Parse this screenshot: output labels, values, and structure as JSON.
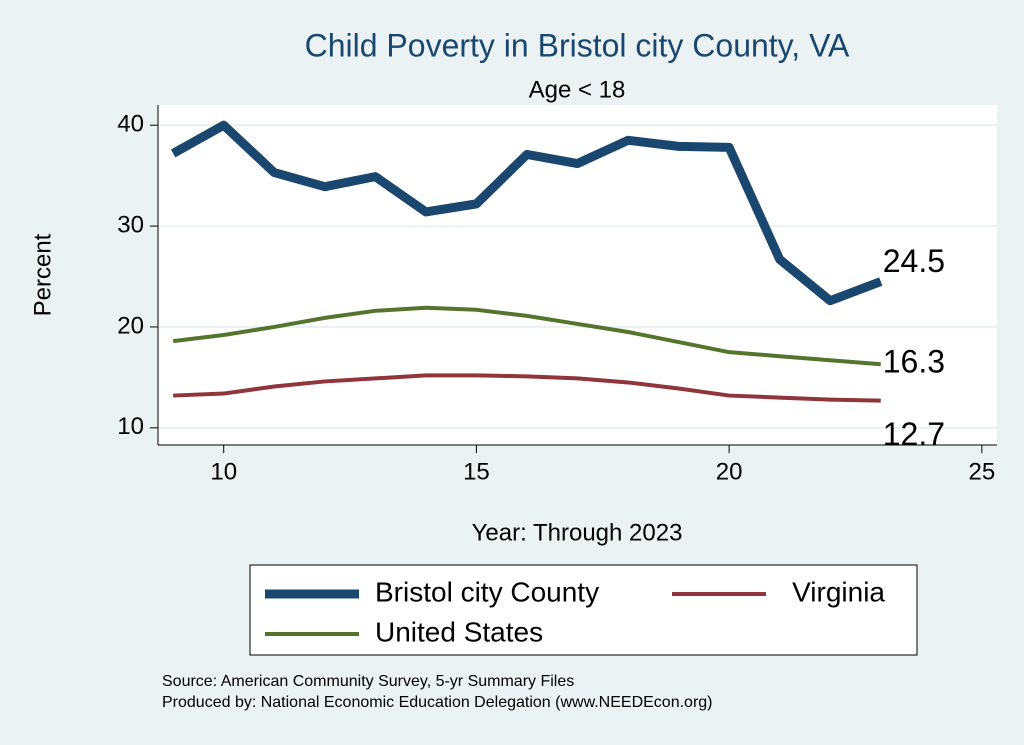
{
  "chart_data": {
    "type": "line",
    "title": "Child Poverty in Bristol city County, VA",
    "subtitle": "Age < 18",
    "x_label": "Year: Through 2023",
    "y_label": "Percent",
    "x": [
      9,
      10,
      11,
      12,
      13,
      14,
      15,
      16,
      17,
      18,
      19,
      20,
      21,
      22,
      23
    ],
    "series": [
      {
        "name": "Bristol city County",
        "color": "#1a476f",
        "values": [
          37.2,
          40,
          35.3,
          33.9,
          34.9,
          31.4,
          32.2,
          37.1,
          36.2,
          38.5,
          37.9,
          37.8,
          26.7,
          22.6,
          24.5
        ]
      },
      {
        "name": "Virginia",
        "color": "#90353b",
        "values": [
          13.2,
          13.4,
          14.1,
          14.6,
          14.9,
          15.2,
          15.2,
          15.1,
          14.9,
          14.5,
          13.9,
          13.2,
          13.0,
          12.8,
          12.7
        ]
      },
      {
        "name": "United States",
        "color": "#55752f",
        "values": [
          18.6,
          19.2,
          20.0,
          20.9,
          21.6,
          21.9,
          21.7,
          21.1,
          20.3,
          19.5,
          18.5,
          17.5,
          17.1,
          16.7,
          16.3
        ]
      }
    ],
    "xlim": [
      8.7,
      25.3
    ],
    "xticks": [
      10,
      15,
      20,
      25
    ],
    "ylim": [
      8.3,
      42
    ],
    "yticks": [
      10,
      20,
      30,
      40
    ],
    "grid": true,
    "legend": "bottom",
    "notes": [
      "Source: American Community Survey, 5-yr Summary Files",
      "Produced by: National Economic Education Delegation (www.NEEDEcon.org)"
    ]
  }
}
